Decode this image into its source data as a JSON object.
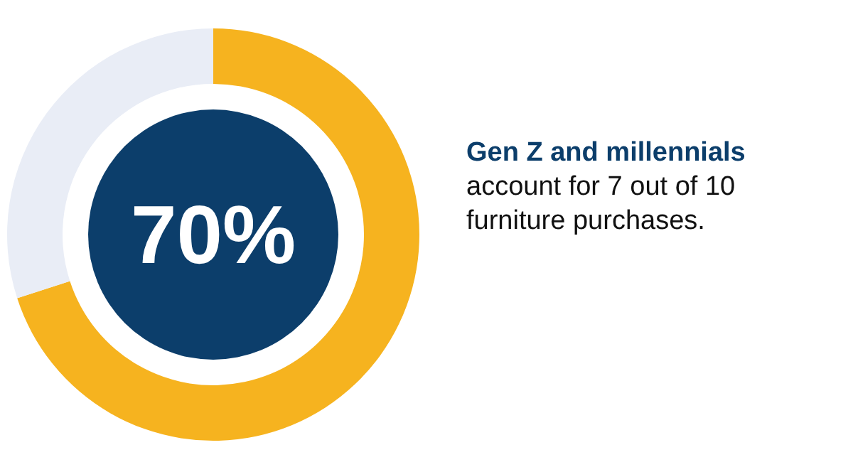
{
  "chart_data": {
    "type": "donut",
    "categories": [
      null,
      null
    ],
    "values": [
      70,
      30
    ],
    "colors": [
      "#f6b31f",
      "#e9edf6"
    ],
    "value_labels": [
      "70%",
      null
    ],
    "annotations": [
      "Gen Z and millennials",
      "account for 7 out of 10 furniture purchases."
    ]
  }
}
